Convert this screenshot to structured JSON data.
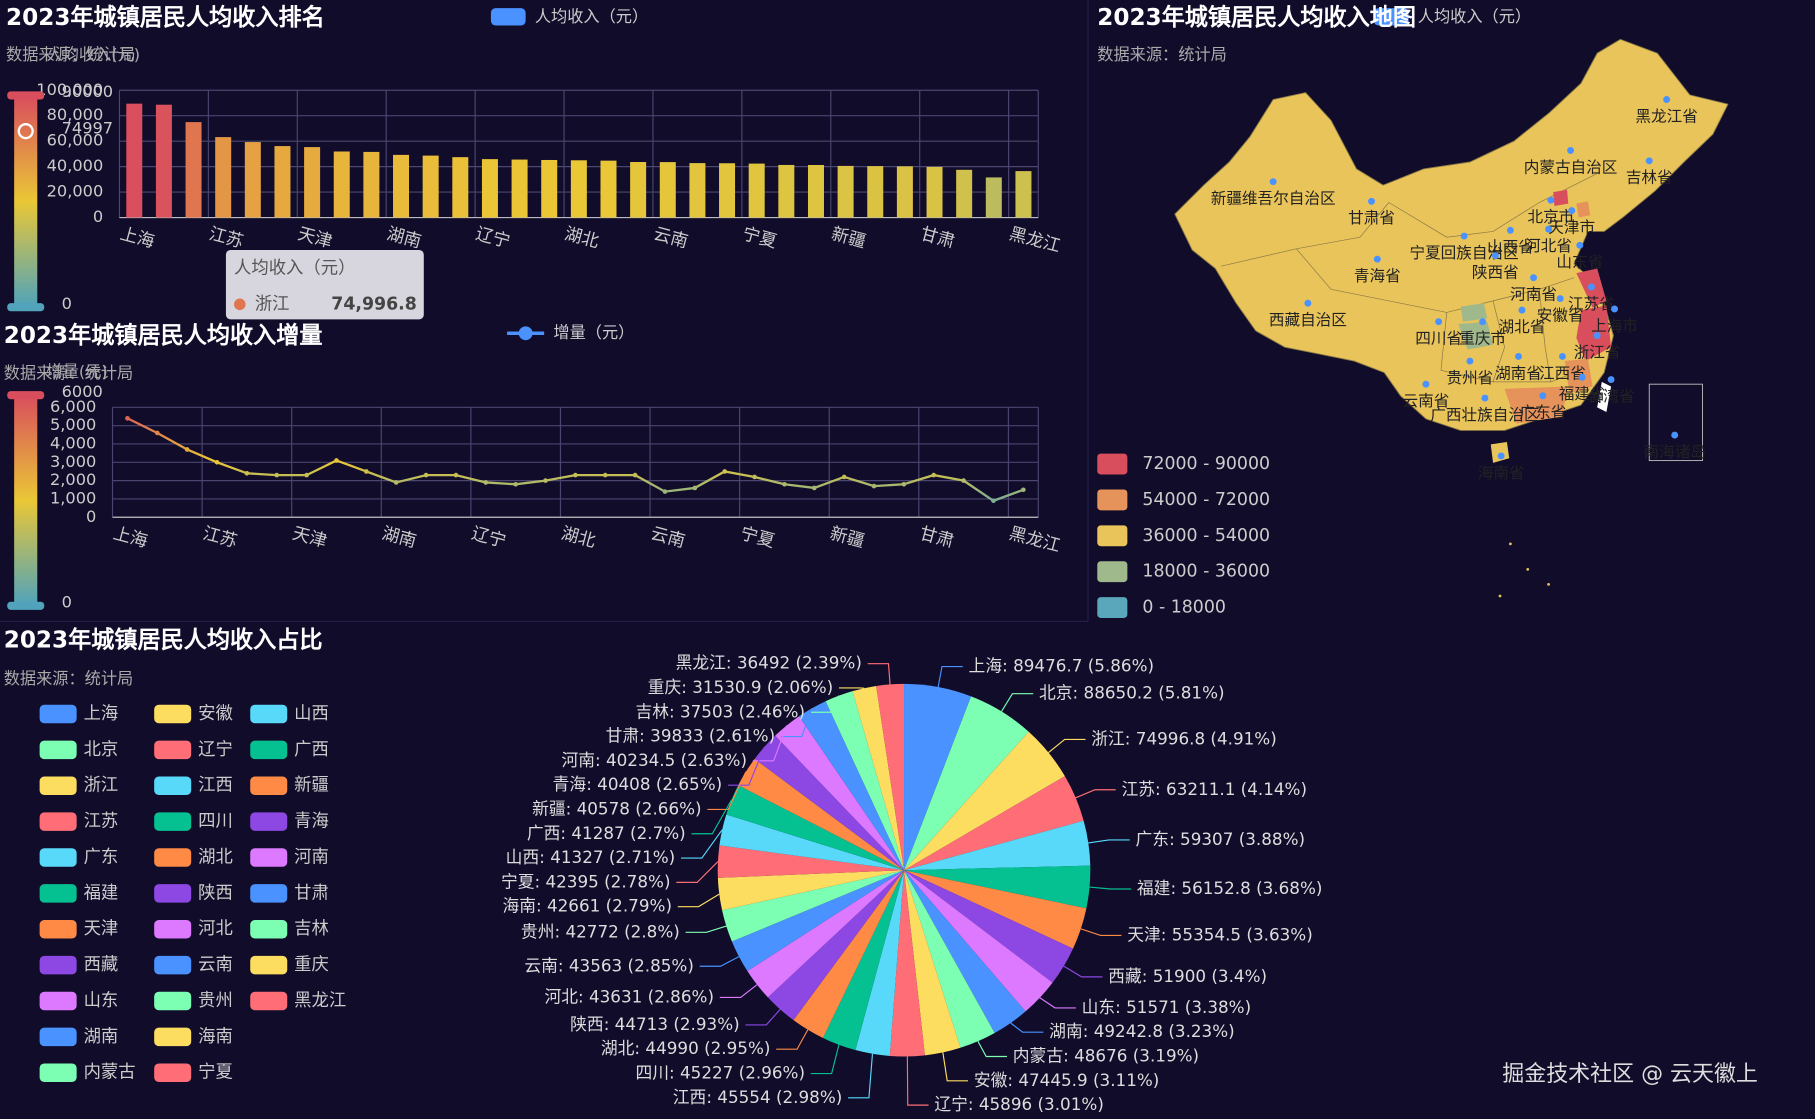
{
  "chart_data": [
    {
      "type": "bar",
      "title": "2023年城镇居民人均收入排名",
      "subtitle": "数据来源：统计局",
      "y_axis_name": "人均收入(元)",
      "categories": [
        "上海",
        null,
        null,
        "江苏",
        null,
        null,
        "天津",
        null,
        null,
        "湖南",
        null,
        null,
        "辽宁",
        null,
        null,
        "湖北",
        null,
        null,
        "云南",
        null,
        null,
        "宁夏",
        null,
        null,
        "新疆",
        null,
        null,
        "甘肃",
        null,
        null,
        "黑龙江"
      ],
      "series": [
        {
          "name": "人均收入（元）",
          "color": "#4992ff",
          "values": [
            89476.7,
            88650.2,
            74996.8,
            63211.1,
            59307,
            56152.8,
            55354.5,
            51900,
            51571,
            49242.8,
            48676,
            47445.9,
            45896,
            45554,
            45227,
            44990,
            44713,
            43631,
            43563,
            42772,
            42661,
            42395,
            41327,
            41287,
            40578,
            40408,
            40234.5,
            39833,
            37503,
            31530.9,
            36492
          ]
        }
      ],
      "ylim": [
        0,
        100000
      ],
      "yticks": [
        0,
        {
          "value": 20000,
          "label": "20,000"
        },
        {
          "value": 40000,
          "label": "40,000"
        },
        {
          "value": 60000,
          "label": "60,000"
        },
        {
          "value": 80000,
          "label": "80,000"
        },
        {
          "value": 100000,
          "label": "100,000"
        }
      ],
      "grid": true,
      "visual_map": {
        "min": 0,
        "max": 90000,
        "colors": [
          "#50a3ba",
          "#eac736",
          "#d94e5d"
        ],
        "indicator": 74997
      },
      "tooltip": {
        "title": "人均收入（元）",
        "name": "浙江",
        "value": 74996.8,
        "value_label": "74,996.8"
      }
    },
    {
      "type": "line",
      "title": "2023年城镇居民人均收入增量",
      "subtitle": "数据来源：统计局",
      "y_axis_name": "增量(元)",
      "categories": [
        "上海",
        null,
        null,
        "江苏",
        null,
        null,
        "天津",
        null,
        null,
        "湖南",
        null,
        null,
        "辽宁",
        null,
        null,
        "湖北",
        null,
        null,
        "云南",
        null,
        null,
        "宁夏",
        null,
        null,
        "新疆",
        null,
        null,
        "甘肃",
        null,
        null,
        "黑龙江"
      ],
      "series": [
        {
          "name": "增量（元）",
          "color": "#4992ff",
          "values": [
            5400,
            4600,
            3700,
            3000,
            2400,
            2300,
            2300,
            3100,
            2500,
            1900,
            2300,
            2300,
            1900,
            1800,
            2000,
            2300,
            2300,
            2300,
            1400,
            1600,
            2500,
            2200,
            1800,
            1600,
            2200,
            1700,
            1800,
            2300,
            2000,
            900,
            1500
          ]
        }
      ],
      "ylim": [
        0,
        6000
      ],
      "yticks": [
        0,
        {
          "value": 1000,
          "label": "1,000"
        },
        {
          "value": 2000,
          "label": "2,000"
        },
        {
          "value": 3000,
          "label": "3,000"
        },
        {
          "value": 4000,
          "label": "4,000"
        },
        {
          "value": 5000,
          "label": "5,000"
        },
        {
          "value": 6000,
          "label": "6,000"
        }
      ],
      "grid": true,
      "visual_map": {
        "min": 0,
        "max": 6000,
        "colors": [
          "#50a3ba",
          "#eac736",
          "#d94e5d"
        ]
      }
    },
    {
      "type": "map",
      "title": "2023年城镇居民人均收入地图",
      "subtitle": "数据来源：统计局",
      "legend": "人均收入（元）",
      "legend_color": "#4992ff",
      "pieces": [
        {
          "label": "72000 - 90000",
          "color": "#d94e5d"
        },
        {
          "label": "54000 - 72000",
          "color": "#e6935b"
        },
        {
          "label": "36000 - 54000",
          "color": "#e9c45a"
        },
        {
          "label": "18000 - 36000",
          "color": "#9fb98c"
        },
        {
          "label": "0 - 18000",
          "color": "#5aa6bb"
        }
      ],
      "regions": [
        "黑龙江省",
        "内蒙古自治区",
        "吉林省",
        "新疆维吾尔自治区",
        "甘肃省",
        "北京市",
        "天津市",
        "河北省",
        "宁夏回族自治区",
        "山西省",
        "青海省",
        "陕西省",
        "山东省",
        "河南省",
        "江苏省",
        "安徽省",
        "上海市",
        "西藏自治区",
        "四川省",
        "重庆市",
        "湖北省",
        "浙江省",
        "贵州省",
        "湖南省",
        "江西省",
        "福建省",
        "云南省",
        "广西壮族自治区",
        "广东省",
        "台湾省",
        "海南省",
        "南海诸岛"
      ]
    },
    {
      "type": "pie",
      "title": "2023年城镇居民人均收入占比",
      "subtitle": "数据来源：统计局",
      "colors": [
        "#4992ff",
        "#7cffb2",
        "#fddd60",
        "#ff6e76",
        "#58d9f9",
        "#05c091",
        "#ff8a45",
        "#8d48e3",
        "#dd79ff"
      ],
      "categories": [
        "上海",
        "北京",
        "浙江",
        "江苏",
        "广东",
        "福建",
        "天津",
        "西藏",
        "山东",
        "湖南",
        "内蒙古",
        "安徽",
        "辽宁",
        "江西",
        "四川",
        "湖北",
        "陕西",
        "河北",
        "云南",
        "贵州",
        "海南",
        "宁夏",
        "山西",
        "广西",
        "新疆",
        "青海",
        "河南",
        "甘肃",
        "吉林",
        "重庆",
        "黑龙江"
      ],
      "values": [
        89476.7,
        88650.2,
        74996.8,
        63211.1,
        59307,
        56152.8,
        55354.5,
        51900,
        51571,
        49242.8,
        48676,
        47445.9,
        45896,
        45554,
        45227,
        44990,
        44713,
        43631,
        43563,
        42772,
        42661,
        42395,
        41327,
        41287,
        40578,
        40408,
        40234.5,
        39833,
        37503,
        31530.9,
        36492
      ],
      "value_labels": [
        "上海: 89476.7 (5.86%)",
        "北京: 88650.2 (5.81%)",
        "浙江: 74996.8 (4.91%)",
        "江苏: 63211.1 (4.14%)",
        "广东: 59307 (3.88%)",
        "福建: 56152.8 (3.68%)",
        "天津: 55354.5 (3.63%)",
        "西藏: 51900 (3.4%)",
        "山东: 51571 (3.38%)",
        "湖南: 49242.8 (3.23%)",
        "内蒙古: 48676 (3.19%)",
        "安徽: 47445.9 (3.11%)",
        "辽宁: 45896 (3.01%)",
        "江西: 45554 (2.98%)",
        "四川: 45227 (2.96%)",
        "湖北: 44990 (2.95%)",
        "陕西: 44713 (2.93%)",
        "河北: 43631 (2.86%)",
        "云南: 43563 (2.85%)",
        "贵州: 42772 (2.8%)",
        "海南: 42661 (2.79%)",
        "宁夏: 42395 (2.78%)",
        "山西: 41327 (2.71%)",
        "广西: 41287 (2.7%)",
        "新疆: 40578 (2.66%)",
        "青海: 40408 (2.65%)",
        "河南: 40234.5 (2.63%)",
        "甘肃: 39833 (2.61%)",
        "吉林: 37503 (2.46%)",
        "重庆: 31530.9 (2.06%)",
        "黑龙江: 36492 (2.39%)"
      ]
    }
  ],
  "watermark": "掘金技术社区 @ 云天徽上"
}
